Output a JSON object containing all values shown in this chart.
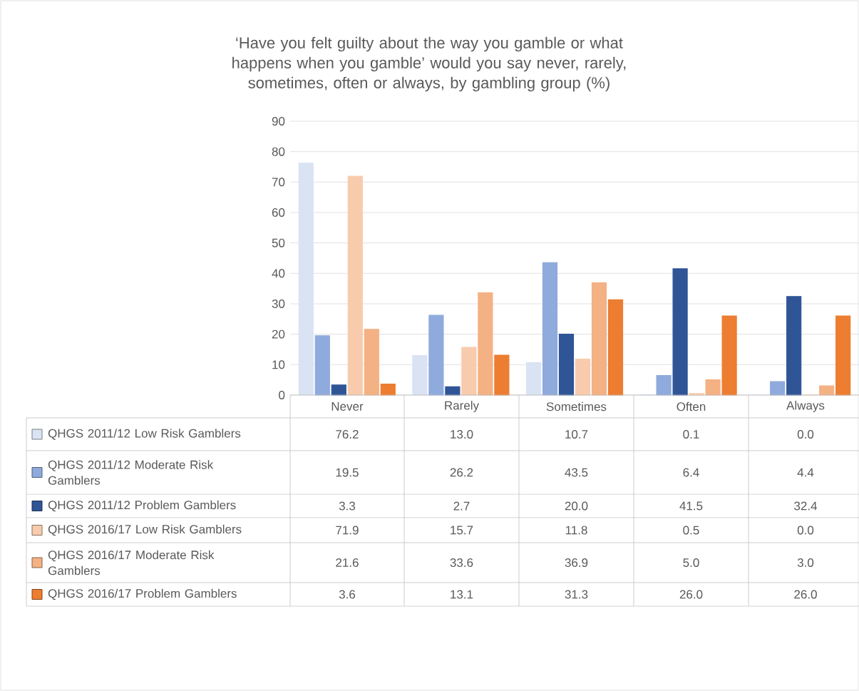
{
  "chart_data": {
    "type": "bar",
    "title": "‘Have you felt guilty about the way you gamble or what happens when you gamble’ would you say never, rarely, sometimes, often or always, by gambling group (%)",
    "categories": [
      "Never",
      "Rarely",
      "Sometimes",
      "Often",
      "Always"
    ],
    "series": [
      {
        "name": "QHGS 2011/12 Low Risk Gamblers",
        "color": "#dae3f3",
        "values": [
          76.2,
          13.0,
          10.7,
          0.1,
          0.0
        ],
        "value_labels": [
          "76.2",
          "13.0",
          "10.7",
          "0.1",
          "0.0"
        ]
      },
      {
        "name": "QHGS 2011/12 Moderate Risk Gamblers",
        "color": "#8faadc",
        "values": [
          19.5,
          26.2,
          43.5,
          6.4,
          4.4
        ],
        "value_labels": [
          "19.5",
          "26.2",
          "43.5",
          "6.4",
          "4.4"
        ]
      },
      {
        "name": "QHGS 2011/12 Problem Gamblers",
        "color": "#2f5597",
        "values": [
          3.3,
          2.7,
          20.0,
          41.5,
          32.4
        ],
        "value_labels": [
          "3.3",
          "2.7",
          "20.0",
          "41.5",
          "32.4"
        ]
      },
      {
        "name": "QHGS 2016/17 Low Risk Gamblers",
        "color": "#f8cbad",
        "values": [
          71.9,
          15.7,
          11.8,
          0.5,
          0.0
        ],
        "value_labels": [
          "71.9",
          "15.7",
          "11.8",
          "0.5",
          "0.0"
        ]
      },
      {
        "name": "QHGS 2016/17 Moderate Risk Gamblers",
        "color": "#f4b183",
        "values": [
          21.6,
          33.6,
          36.9,
          5.0,
          3.0
        ],
        "value_labels": [
          "21.6",
          "33.6",
          "36.9",
          "5.0",
          "3.0"
        ]
      },
      {
        "name": "QHGS 2016/17 Problem Gamblers",
        "color": "#ed7d31",
        "values": [
          3.6,
          13.1,
          31.3,
          26.0,
          26.0
        ],
        "value_labels": [
          "3.6",
          "13.1",
          "31.3",
          "26.0",
          "26.0"
        ]
      }
    ],
    "ylim": [
      0,
      90
    ],
    "yticks": [
      0,
      10,
      20,
      30,
      40,
      50,
      60,
      70,
      80,
      90
    ],
    "grid": "y",
    "legend": "bottom"
  }
}
